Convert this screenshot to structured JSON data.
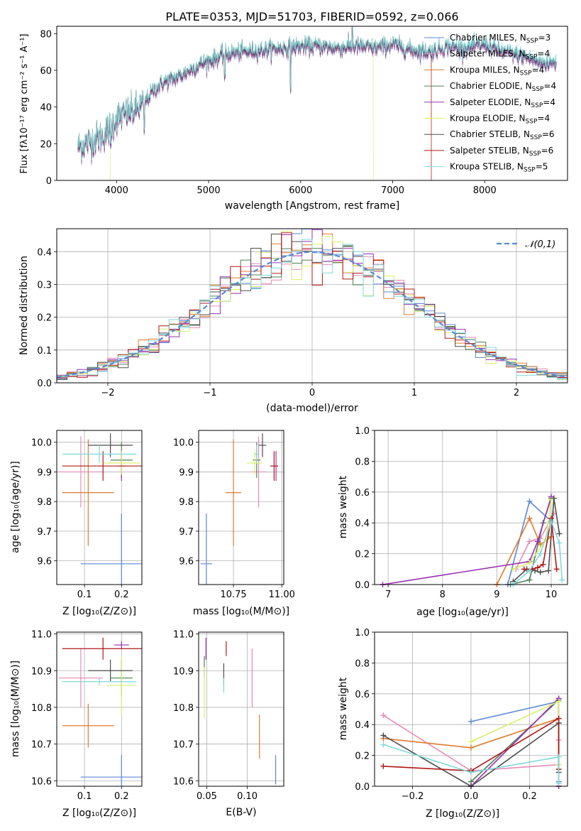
{
  "figure_title": "PLATE=0353, MJD=51703, FIBERID=0592, z=0.066",
  "colors": {
    "Chabrier MILES": "#5b87d6",
    "Salpeter MILES": "#e58bb7",
    "Kroupa MILES": "#e07b2d",
    "Chabrier ELODIE": "#4f7f55",
    "Salpeter ELODIE": "#9b2db3",
    "Kroupa ELODIE": "#d9f06b",
    "Chabrier STELIB": "#4d4d4d",
    "Salpeter STELIB": "#b01818",
    "Kroupa STELIB": "#80d9d9",
    "normal": "#5b87d6"
  },
  "chart_data": [
    {
      "id": "spectrum",
      "type": "line",
      "title": "PLATE=0353, MJD=51703, FIBERID=0592, z=0.066",
      "xlabel": "wavelength [Angstrom, rest frame]",
      "ylabel": "Flux [fλ10⁻¹⁷ erg cm⁻² s⁻¹ A⁻¹]",
      "xlim": [
        3350,
        8900
      ],
      "ylim": [
        0,
        84
      ],
      "xticks": [
        4000,
        5000,
        6000,
        7000,
        8000
      ],
      "yticks": [
        0,
        20,
        40,
        60,
        80
      ],
      "legend_placement": "right",
      "series": [
        {
          "name": "Chabrier MILES, N_SSP=3"
        },
        {
          "name": "Salpeter MILES, N_SSP=4"
        },
        {
          "name": "Kroupa MILES, N_SSP=4"
        },
        {
          "name": "Chabrier ELODIE, N_SSP=4"
        },
        {
          "name": "Salpeter ELODIE, N_SSP=4"
        },
        {
          "name": "Kroupa ELODIE, N_SSP=4"
        },
        {
          "name": "Chabrier STELIB, N_SSP=6"
        },
        {
          "name": "Salpeter STELIB, N_SSP=6"
        },
        {
          "name": "Kroupa STELIB, N_SSP=5"
        }
      ],
      "continuum_x": [
        3580,
        3700,
        3850,
        3950,
        4000,
        4100,
        4200,
        4300,
        4400,
        4500,
        4600,
        4700,
        4800,
        4900,
        5000,
        5200,
        5400,
        5600,
        5800,
        6000,
        6200,
        6400,
        6600,
        6800,
        7000,
        7200,
        7400,
        7600,
        7800,
        8000,
        8200,
        8400,
        8600
      ],
      "continuum_y": [
        18,
        21,
        24,
        30,
        34,
        36,
        38,
        42,
        49,
        53,
        55,
        57,
        60,
        63,
        65,
        69,
        70,
        71,
        72,
        73,
        73,
        72,
        73,
        72,
        74,
        71,
        70,
        73,
        72,
        74,
        70,
        68,
        64
      ],
      "model_ranges": [
        {
          "series": 5,
          "x": [
            3930,
            6790
          ]
        },
        {
          "series": 2,
          "x": [
            3580,
            7420
          ]
        },
        {
          "series": 7,
          "x": [
            3580,
            7420
          ]
        },
        {
          "series": 0,
          "x": [
            3580,
            8780
          ]
        },
        {
          "series": 1,
          "x": [
            3580,
            8780
          ]
        },
        {
          "series": 3,
          "x": [
            3580,
            8780
          ]
        },
        {
          "series": 4,
          "x": [
            3580,
            8780
          ]
        },
        {
          "series": 6,
          "x": [
            3580,
            8780
          ]
        },
        {
          "series": 8,
          "x": [
            3580,
            8780
          ]
        }
      ]
    },
    {
      "id": "residuals",
      "type": "line",
      "xlabel": "(data-model)/error",
      "ylabel": "Normed distribution",
      "xlim": [
        -2.5,
        2.5
      ],
      "ylim": [
        0,
        0.47
      ],
      "xticks": [
        -2,
        -1,
        0,
        1,
        2
      ],
      "yticks": [
        0.0,
        0.1,
        0.2,
        0.3,
        0.4
      ],
      "grid": true,
      "bins": 50,
      "legend": "𝒩(0,1)",
      "legend_placement": "top-right"
    },
    {
      "id": "age_vs_Z",
      "type": "scatter",
      "xlabel": "Z [log₁₀(Z/Z⊙)]",
      "ylabel": "age  [log₁₀(age/yr)]",
      "xlim": [
        0.025,
        0.255
      ],
      "ylim": [
        9.52,
        10.04
      ],
      "xticks": [
        0.1,
        0.2
      ],
      "yticks": [
        9.6,
        9.7,
        9.8,
        9.9,
        10.0
      ],
      "grid": true,
      "points": [
        {
          "series": 0,
          "x": 0.2,
          "xerr": 0.11,
          "y": 9.59,
          "yerr": 0.17
        },
        {
          "series": 1,
          "x": 0.09,
          "xerr": 0.06,
          "y": 9.9,
          "yerr": 0.12
        },
        {
          "series": 2,
          "x": 0.11,
          "xerr": 0.07,
          "y": 9.83,
          "yerr": 0.18
        },
        {
          "series": 3,
          "x": 0.2,
          "xerr": 0.03,
          "y": 9.94,
          "yerr": 0.06
        },
        {
          "series": 4,
          "x": 0.2,
          "xerr": 0.01,
          "y": 9.92,
          "yerr": 0.05
        },
        {
          "series": 5,
          "x": 0.2,
          "xerr": 0.05,
          "y": 9.93,
          "yerr": 0.04
        },
        {
          "series": 6,
          "x": 0.17,
          "xerr": 0.06,
          "y": 9.99,
          "yerr": 0.04
        },
        {
          "series": 7,
          "x": 0.15,
          "xerr": 0.11,
          "y": 9.92,
          "yerr": 0.05
        },
        {
          "series": 8,
          "x": 0.14,
          "xerr": 0.1,
          "y": 9.96,
          "yerr": 0.03
        }
      ]
    },
    {
      "id": "age_vs_mass",
      "type": "scatter",
      "xlabel": "mass [log₁₀(M/M⊙)]",
      "xlim": [
        10.57,
        11.01
      ],
      "ylim": [
        9.52,
        10.04
      ],
      "xticks": [
        10.75,
        11.0
      ],
      "yticks": [
        9.6,
        9.7,
        9.8,
        9.9,
        10.0
      ],
      "grid": true,
      "points": [
        {
          "series": 0,
          "x": 10.61,
          "xerr": 0.03,
          "y": 9.59,
          "yerr": 0.17
        },
        {
          "series": 1,
          "x": 10.88,
          "xerr": 0.04,
          "y": 9.9,
          "yerr": 0.12
        },
        {
          "series": 2,
          "x": 10.75,
          "xerr": 0.04,
          "y": 9.83,
          "yerr": 0.18
        },
        {
          "series": 3,
          "x": 10.87,
          "xerr": 0.02,
          "y": 9.94,
          "yerr": 0.06
        },
        {
          "series": 4,
          "x": 10.97,
          "xerr": 0.01,
          "y": 9.92,
          "yerr": 0.05
        },
        {
          "series": 5,
          "x": 10.86,
          "xerr": 0.04,
          "y": 9.93,
          "yerr": 0.04
        },
        {
          "series": 6,
          "x": 10.9,
          "xerr": 0.02,
          "y": 9.99,
          "yerr": 0.04
        },
        {
          "series": 7,
          "x": 10.96,
          "xerr": 0.02,
          "y": 9.92,
          "yerr": 0.05
        },
        {
          "series": 8,
          "x": 10.87,
          "xerr": 0.01,
          "y": 9.96,
          "yerr": 0.03
        }
      ]
    },
    {
      "id": "weight_vs_age",
      "type": "line",
      "xlabel": "age  [log₁₀(age/yr)]",
      "ylabel": "mass weight",
      "xlim": [
        6.75,
        10.3
      ],
      "ylim": [
        0,
        1.0
      ],
      "xticks": [
        7,
        8,
        9,
        10
      ],
      "yticks": [
        0.0,
        0.2,
        0.4,
        0.6,
        0.8,
        1.0
      ],
      "grid": true,
      "series": [
        {
          "series": 0,
          "x": [
            9.2,
            9.6,
            10.0
          ],
          "y": [
            0.0,
            0.54,
            0.41
          ]
        },
        {
          "series": 1,
          "x": [
            9.35,
            9.6,
            9.8,
            10.05
          ],
          "y": [
            0.1,
            0.28,
            0.3,
            0.46
          ]
        },
        {
          "series": 2,
          "x": [
            9.0,
            9.6,
            9.8,
            10.0
          ],
          "y": [
            0.0,
            0.43,
            0.26,
            0.31
          ]
        },
        {
          "series": 3,
          "x": [
            9.25,
            9.6,
            9.85,
            10.0
          ],
          "y": [
            0.0,
            0.03,
            0.4,
            0.56
          ]
        },
        {
          "series": 4,
          "x": [
            6.9,
            9.6,
            9.75,
            10.0
          ],
          "y": [
            0.0,
            0.15,
            0.28,
            0.57
          ]
        },
        {
          "series": 5,
          "x": [
            9.3,
            9.6,
            9.9,
            10.0
          ],
          "y": [
            0.1,
            0.14,
            0.29,
            0.55
          ]
        },
        {
          "series": 6,
          "x": [
            9.3,
            9.55,
            9.7,
            9.8,
            9.95,
            10.05,
            10.15
          ],
          "y": [
            0.02,
            0.1,
            0.09,
            0.08,
            0.09,
            0.56,
            0.33
          ]
        },
        {
          "series": 7,
          "x": [
            9.5,
            9.65,
            9.75,
            9.85,
            10.0,
            10.1
          ],
          "y": [
            0.1,
            0.1,
            0.11,
            0.13,
            0.43,
            0.1
          ]
        },
        {
          "series": 8,
          "x": [
            9.3,
            9.6,
            9.8,
            10.0,
            10.15,
            10.2
          ],
          "y": [
            0.0,
            0.09,
            0.2,
            0.41,
            0.27,
            0.03
          ]
        }
      ]
    },
    {
      "id": "mass_vs_Z",
      "type": "scatter",
      "xlabel": "Z [log₁₀(Z/Z⊙)]",
      "ylabel": "mass [log₁₀(M/M⊙)]",
      "xlim": [
        0.025,
        0.255
      ],
      "ylim": [
        10.585,
        11.005
      ],
      "xticks": [
        0.1,
        0.2
      ],
      "yticks": [
        10.6,
        10.7,
        10.8,
        10.9,
        11.0
      ],
      "grid": true,
      "points": [
        {
          "series": 0,
          "x": 0.2,
          "xerr": 0.11,
          "y": 10.61,
          "yerr": 0.06
        },
        {
          "series": 1,
          "x": 0.09,
          "xerr": 0.06,
          "y": 10.88,
          "yerr": 0.08
        },
        {
          "series": 2,
          "x": 0.11,
          "xerr": 0.07,
          "y": 10.75,
          "yerr": 0.06
        },
        {
          "series": 3,
          "x": 0.2,
          "xerr": 0.03,
          "y": 10.88,
          "yerr": 0.05
        },
        {
          "series": 4,
          "x": 0.2,
          "xerr": 0.02,
          "y": 10.97,
          "yerr": 0.01
        },
        {
          "series": 5,
          "x": 0.2,
          "xerr": 0.04,
          "y": 10.86,
          "yerr": 0.08
        },
        {
          "series": 6,
          "x": 0.17,
          "xerr": 0.06,
          "y": 10.9,
          "yerr": 0.03
        },
        {
          "series": 7,
          "x": 0.15,
          "xerr": 0.11,
          "y": 10.96,
          "yerr": 0.03
        },
        {
          "series": 8,
          "x": 0.14,
          "xerr": 0.1,
          "y": 10.87,
          "yerr": 0.01
        }
      ]
    },
    {
      "id": "mass_vs_EBV",
      "type": "scatter",
      "xlabel": "E(B-V)",
      "xlim": [
        0.04,
        0.145
      ],
      "ylim": [
        10.585,
        11.005
      ],
      "xticks": [
        0.05,
        0.1
      ],
      "yticks": [
        10.6,
        10.7,
        10.8,
        10.9,
        11.0
      ],
      "grid": true,
      "points": [
        {
          "series": 0,
          "x": 0.135,
          "y": 10.63,
          "yerr": 0.04
        },
        {
          "series": 1,
          "x": 0.106,
          "y": 10.88,
          "yerr": 0.08
        },
        {
          "series": 2,
          "x": 0.115,
          "y": 10.72,
          "yerr": 0.06
        },
        {
          "series": 3,
          "x": 0.047,
          "y": 10.91,
          "yerr": 0.03
        },
        {
          "series": 4,
          "x": 0.049,
          "y": 10.96,
          "yerr": 0.03
        },
        {
          "series": 5,
          "x": 0.047,
          "y": 10.84,
          "yerr": 0.07
        },
        {
          "series": 6,
          "x": 0.071,
          "y": 10.89,
          "yerr": 0.03
        },
        {
          "series": 7,
          "x": 0.074,
          "y": 10.96,
          "yerr": 0.02
        },
        {
          "series": 8,
          "x": 0.071,
          "y": 10.86,
          "yerr": 0.02
        }
      ]
    },
    {
      "id": "weight_vs_Z",
      "type": "line",
      "xlabel": "Z [log₁₀(Z/Z⊙)]",
      "ylabel": "mass weight",
      "xlim": [
        -0.33,
        0.33
      ],
      "ylim": [
        0,
        1.0
      ],
      "xticks": [
        -0.2,
        0.0,
        0.2
      ],
      "yticks": [
        0.0,
        0.2,
        0.4,
        0.6,
        0.8,
        1.0
      ],
      "grid": true,
      "series": [
        {
          "series": 0,
          "x": [
            0.0,
            0.3,
            0.3
          ],
          "y": [
            0.42,
            0.55,
            0.03
          ]
        },
        {
          "series": 1,
          "x": [
            -0.3,
            0.0,
            0.3,
            0.3
          ],
          "y": [
            0.46,
            0.1,
            0.14,
            0.3
          ]
        },
        {
          "series": 2,
          "x": [
            -0.3,
            0.0,
            0.3,
            0.3
          ],
          "y": [
            0.31,
            0.25,
            0.44,
            0.0
          ]
        },
        {
          "series": 3,
          "x": [
            0.0,
            0.3,
            0.3
          ],
          "y": [
            0.03,
            0.56,
            0.41
          ]
        },
        {
          "series": 4,
          "x": [
            0.0,
            0.3,
            0.3
          ],
          "y": [
            0.0,
            0.57,
            0.0
          ]
        },
        {
          "series": 5,
          "x": [
            0.0,
            0.3,
            0.3,
            0.3
          ],
          "y": [
            0.29,
            0.55,
            0.14,
            0.02
          ]
        },
        {
          "series": 6,
          "x": [
            -0.3,
            0.0,
            0.3,
            0.3
          ],
          "y": [
            0.33,
            0.0,
            0.41,
            0.09
          ]
        },
        {
          "series": 7,
          "x": [
            -0.3,
            0.0,
            0.3,
            0.3
          ],
          "y": [
            0.13,
            0.1,
            0.44,
            0.11
          ]
        },
        {
          "series": 8,
          "x": [
            -0.3,
            0.0,
            0.3,
            0.3
          ],
          "y": [
            0.27,
            0.09,
            0.19,
            0.02
          ]
        }
      ]
    }
  ]
}
